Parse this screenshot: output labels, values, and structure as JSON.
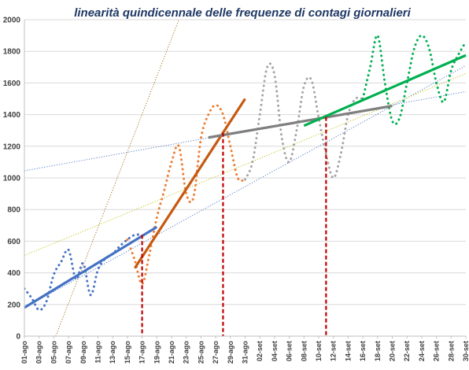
{
  "chart_data": {
    "type": "line",
    "title": "linearità quindicennale delle frequenze di contagi giornalieri",
    "xlabel": "",
    "ylabel": "",
    "ylim": [
      0,
      2000
    ],
    "yticks": [
      0,
      200,
      400,
      600,
      800,
      1000,
      1200,
      1400,
      1600,
      1800,
      2000
    ],
    "grid": true,
    "legend": "none",
    "x_start": "01-ago",
    "x_end": "30-set",
    "x_tick_labels": [
      "01-ago",
      "03-ago",
      "05-ago",
      "07-ago",
      "09-ago",
      "11-ago",
      "13-ago",
      "15-ago",
      "17-ago",
      "19-ago",
      "21-ago",
      "23-ago",
      "25-ago",
      "27-ago",
      "29-ago",
      "31-ago",
      "02-set",
      "04-set",
      "06-set",
      "08-set",
      "10-set",
      "12-set",
      "14-set",
      "16-set",
      "18-set",
      "20-set",
      "22-set",
      "24-set",
      "26-set",
      "28-set",
      "30-set"
    ],
    "series": [
      {
        "color": "#4472c4",
        "style": "dotted",
        "x": [
          "01-ago",
          "02-ago",
          "03-ago",
          "04-ago",
          "05-ago",
          "06-ago",
          "07-ago",
          "08-ago",
          "09-ago",
          "10-ago",
          "11-ago",
          "12-ago",
          "13-ago",
          "14-ago",
          "15-ago",
          "16-ago",
          "17-ago"
        ],
        "values": [
          300,
          240,
          165,
          220,
          390,
          470,
          545,
          360,
          460,
          260,
          420,
          490,
          520,
          570,
          610,
          640,
          640
        ]
      },
      {
        "color": "#ed7d31",
        "style": "dotted",
        "x": [
          "15-ago",
          "16-ago",
          "17-ago",
          "18-ago",
          "19-ago",
          "20-ago",
          "21-ago",
          "22-ago",
          "23-ago",
          "24-ago",
          "25-ago",
          "26-ago",
          "27-ago",
          "28-ago",
          "29-ago",
          "30-ago",
          "31-ago"
        ],
        "values": [
          610,
          480,
          330,
          520,
          750,
          920,
          1100,
          1200,
          900,
          880,
          1250,
          1400,
          1460,
          1400,
          1200,
          1000,
          990
        ]
      },
      {
        "color": "#a5a5a5",
        "style": "dotted",
        "x": [
          "31-ago",
          "01-set",
          "02-set",
          "03-set",
          "04-set",
          "05-set",
          "06-set",
          "07-set",
          "08-set",
          "09-set",
          "10-set",
          "11-set",
          "12-set",
          "13-set",
          "14-set",
          "15-set",
          "16-set"
        ],
        "values": [
          990,
          1100,
          1400,
          1700,
          1650,
          1250,
          1100,
          1300,
          1580,
          1620,
          1380,
          1150,
          1000,
          1150,
          1400,
          1500,
          1500
        ]
      },
      {
        "color": "#00b050",
        "style": "dotted",
        "x": [
          "16-set",
          "17-set",
          "18-set",
          "19-set",
          "20-set",
          "21-set",
          "22-set",
          "23-set",
          "24-set",
          "25-set",
          "26-set",
          "27-set",
          "28-set",
          "29-set",
          "30-set"
        ],
        "values": [
          1500,
          1700,
          1900,
          1600,
          1360,
          1380,
          1600,
          1820,
          1900,
          1820,
          1600,
          1480,
          1680,
          1780,
          1860
        ]
      }
    ],
    "trend_segments": [
      {
        "color": "#4472c4",
        "from": [
          "01-ago",
          180
        ],
        "to": [
          "19-ago",
          690
        ]
      },
      {
        "color": "#c55a11",
        "from": [
          "16-ago",
          430
        ],
        "to": [
          "31-ago",
          1500
        ]
      },
      {
        "color": "#7f7f7f",
        "from": [
          "26-ago",
          1255
        ],
        "to": [
          "20-set",
          1455
        ]
      },
      {
        "color": "#00b050",
        "from": [
          "08-set",
          1330
        ],
        "to": [
          "30-set",
          1775
        ]
      }
    ],
    "trend_extensions": [
      {
        "color": "#4472c4",
        "from": [
          "01-ago",
          180
        ],
        "to": [
          "30-set",
          1710
        ]
      },
      {
        "color": "#bdbd00",
        "from": [
          "01-ago",
          510
        ],
        "to": [
          "30-set",
          1660
        ]
      },
      {
        "color": "#9c6500",
        "from": [
          "05-ago",
          -30
        ],
        "to": [
          "22-ago",
          2000
        ]
      },
      {
        "color": "#4472c4",
        "from": [
          "01-ago",
          1045
        ],
        "to": [
          "30-set",
          1545
        ]
      }
    ],
    "markers": [
      {
        "x": "17-ago",
        "y": 640,
        "color": "#c00000"
      },
      {
        "x": "28-ago",
        "y": 1285,
        "color": "#c00000"
      },
      {
        "x": "11-set",
        "y": 1385,
        "color": "#c00000"
      }
    ]
  }
}
